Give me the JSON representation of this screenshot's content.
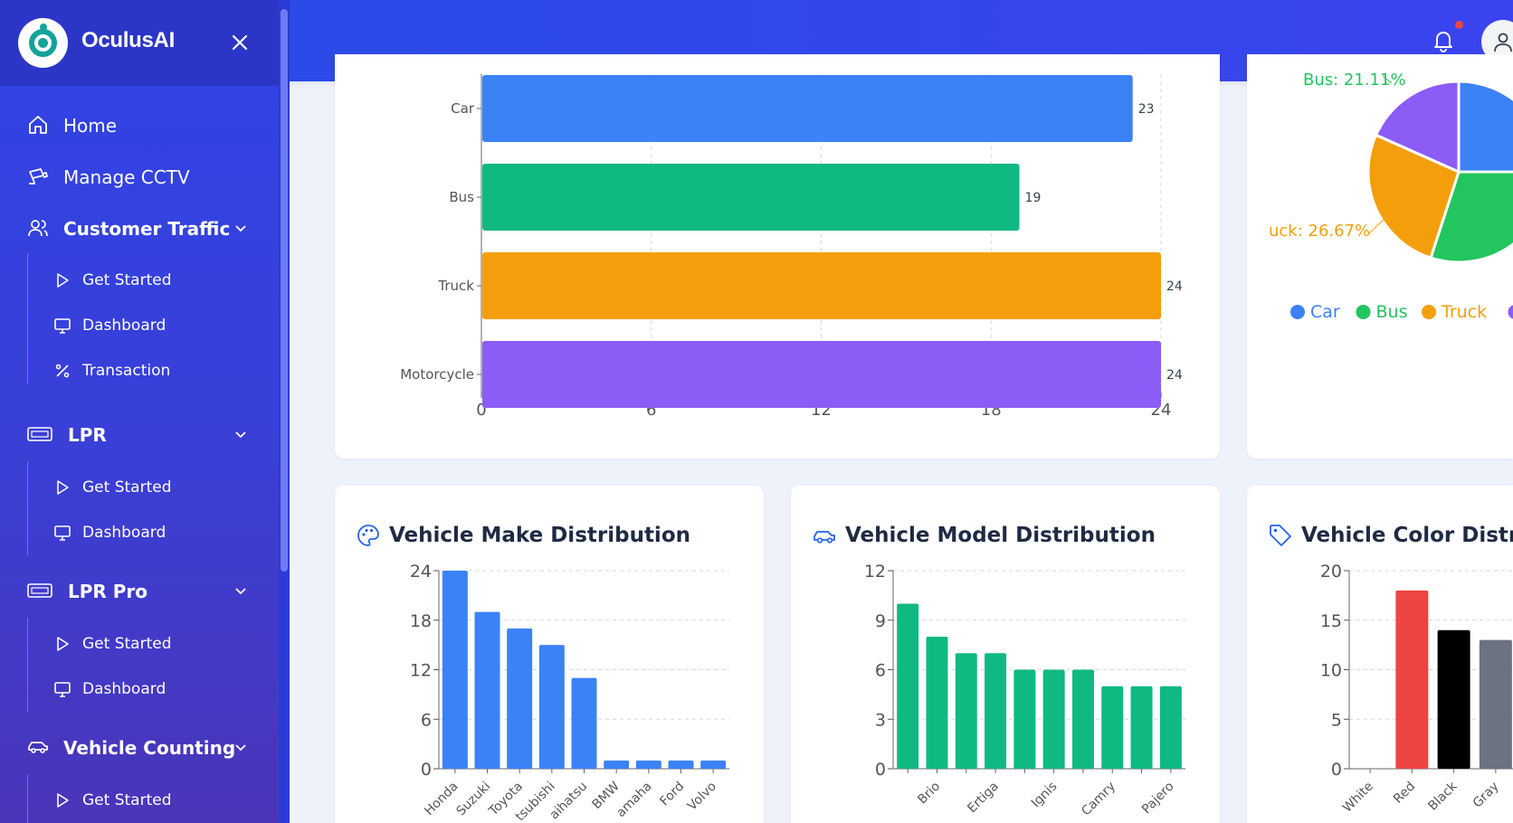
{
  "app": {
    "name": "OculusAI"
  },
  "sidebar": {
    "items": [
      {
        "label": "Home",
        "icon": "home-icon"
      },
      {
        "label": "Manage CCTV",
        "icon": "cctv-icon"
      },
      {
        "label": "Customer Traffic",
        "icon": "users-icon",
        "expanded": true,
        "children": [
          {
            "label": "Get Started"
          },
          {
            "label": "Dashboard"
          },
          {
            "label": "Transaction"
          }
        ]
      },
      {
        "label": "LPR",
        "icon": "license-plate-icon",
        "expanded": true,
        "children": [
          {
            "label": "Get Started"
          },
          {
            "label": "Dashboard"
          }
        ]
      },
      {
        "label": "LPR Pro",
        "icon": "license-plate-icon",
        "expanded": true,
        "children": [
          {
            "label": "Get Started"
          },
          {
            "label": "Dashboard"
          }
        ]
      },
      {
        "label": "Vehicle Counting",
        "icon": "car-icon",
        "expanded": true,
        "children": [
          {
            "label": "Get Started"
          }
        ]
      }
    ]
  },
  "topbar": {
    "notification_icon": "bell-icon",
    "has_unread": true,
    "user_icon": "user-icon"
  },
  "cards": {
    "make": {
      "title": "Vehicle Make Distribution",
      "icon": "palette-icon"
    },
    "model": {
      "title": "Vehicle Model Distribution",
      "icon": "car-icon"
    },
    "color": {
      "title": "Vehicle Color Distribu",
      "icon": "tag-icon"
    }
  },
  "chart_data": [
    {
      "type": "bar",
      "orientation": "horizontal",
      "categories": [
        "Car",
        "Bus",
        "Truck",
        "Motorcycle"
      ],
      "values": [
        23,
        19,
        24,
        24
      ],
      "colors": [
        "#3b82f6",
        "#10b981",
        "#f59e0b",
        "#8b5cf6"
      ],
      "xlim": [
        0,
        24
      ],
      "xticks": [
        "0",
        "6",
        "12",
        "18",
        "24"
      ],
      "grid": true
    },
    {
      "type": "pie",
      "slices": [
        {
          "label": "Car",
          "color": "#3b82f6"
        },
        {
          "label": "Bus",
          "color": "#22c55e"
        },
        {
          "label": "Truck",
          "color": "#f59e0b"
        },
        {
          "label": "Motorcycle",
          "color": "#8b5cf6"
        }
      ],
      "visible_labels": [
        "Bus: 21.11%",
        "uck: 26.67%"
      ],
      "legend": [
        "Car",
        "Bus",
        "Truck"
      ],
      "legend_position": "bottom"
    },
    {
      "type": "bar",
      "categories": [
        "Honda",
        "Suzuki",
        "Toyota",
        "tsubishi",
        "aihatsu",
        "BMW",
        "amaha",
        "Ford",
        "Volvo"
      ],
      "values": [
        24,
        19,
        17,
        15,
        11,
        1,
        1,
        1,
        1
      ],
      "color": "#3b82f6",
      "ylim": [
        0,
        24
      ],
      "yticks": [
        "0",
        "6",
        "12",
        "18",
        "24"
      ],
      "grid": true
    },
    {
      "type": "bar",
      "values": [
        10,
        8,
        7,
        7,
        6,
        6,
        6,
        5,
        5,
        5
      ],
      "xtick_labels": [
        "Brio",
        "Ertiga",
        "Ignis",
        "Camry",
        "Pajero"
      ],
      "color": "#10b981",
      "ylim": [
        0,
        12
      ],
      "yticks": [
        "0",
        "3",
        "6",
        "9",
        "12"
      ],
      "grid": true
    },
    {
      "type": "bar",
      "categories": [
        "White",
        "Red",
        "Black",
        "Gray"
      ],
      "values": [
        0,
        18,
        14,
        13
      ],
      "colors": [
        "#e5e7eb",
        "#ef4444",
        "#000000",
        "#6b7280"
      ],
      "ylim": [
        0,
        20
      ],
      "yticks": [
        "0",
        "5",
        "10",
        "15",
        "20"
      ],
      "grid": true
    }
  ]
}
